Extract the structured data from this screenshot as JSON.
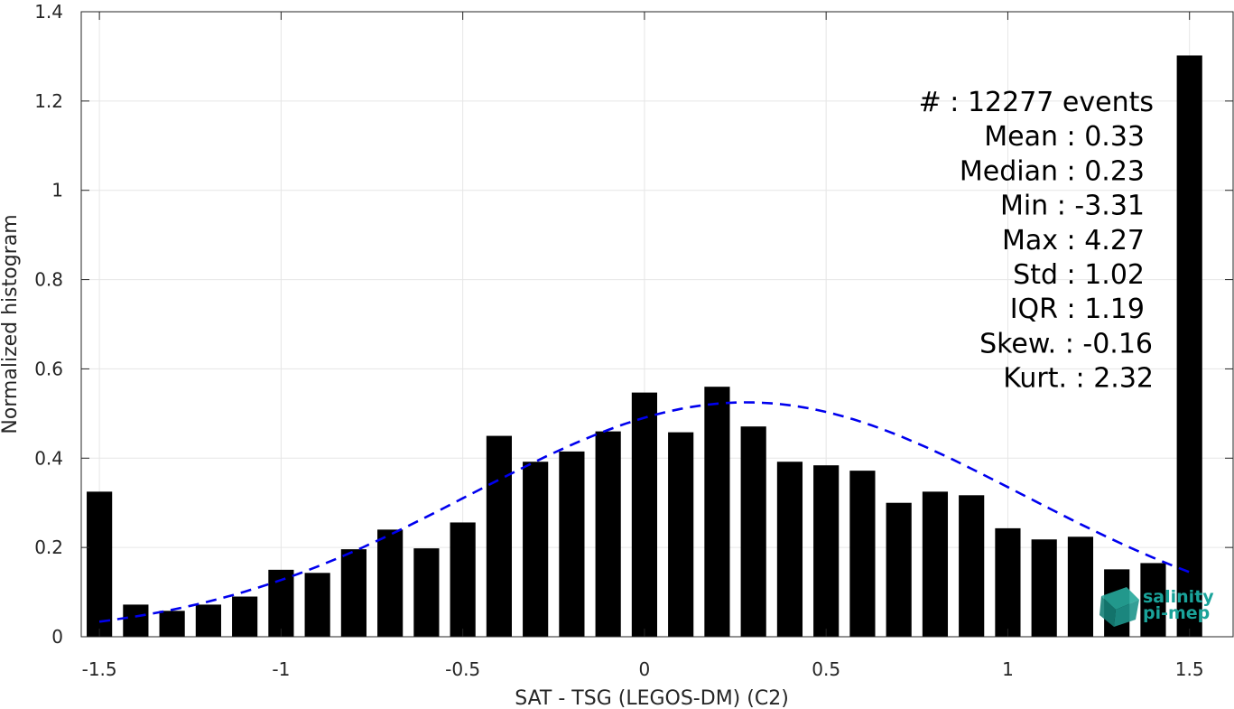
{
  "chart_data": {
    "type": "bar",
    "xlabel": "SAT - TSG (LEGOS-DM) (C2)",
    "ylabel": "Normalized histogram",
    "xlim": [
      -1.55,
      1.62
    ],
    "ylim": [
      0,
      1.4
    ],
    "xticks": [
      -1.5,
      -1,
      -0.5,
      0,
      0.5,
      1,
      1.5
    ],
    "xtick_labels": [
      "-1.5",
      "-1",
      "-0.5",
      "0",
      "0.5",
      "1",
      "1.5"
    ],
    "yticks": [
      0,
      0.2,
      0.4,
      0.6,
      0.8,
      1,
      1.2,
      1.4
    ],
    "ytick_labels": [
      "0",
      "0.2",
      "0.4",
      "0.6",
      "0.8",
      "1",
      "1.2",
      "1.4"
    ],
    "grid": true,
    "bar_color": "#000000",
    "bars": {
      "x": [
        -1.5,
        -1.4,
        -1.3,
        -1.2,
        -1.1,
        -1.0,
        -0.9,
        -0.8,
        -0.7,
        -0.6,
        -0.5,
        -0.4,
        -0.3,
        -0.2,
        -0.1,
        0.0,
        0.1,
        0.2,
        0.3,
        0.4,
        0.5,
        0.6,
        0.7,
        0.8,
        0.9,
        1.0,
        1.1,
        1.2,
        1.3,
        1.4,
        1.5
      ],
      "values": [
        0.325,
        0.072,
        0.058,
        0.072,
        0.09,
        0.15,
        0.143,
        0.196,
        0.24,
        0.198,
        0.256,
        0.45,
        0.392,
        0.415,
        0.46,
        0.547,
        0.458,
        0.56,
        0.471,
        0.392,
        0.384,
        0.372,
        0.3,
        0.325,
        0.317,
        0.243,
        0.218,
        0.224,
        0.151,
        0.165,
        1.302
      ]
    },
    "fit_curve": {
      "type": "normal",
      "mean": 0.28,
      "std": 0.76,
      "peak": 0.525,
      "x_range": [
        -1.5,
        1.5
      ],
      "color": "#0000ee",
      "style": "dashed"
    },
    "stats": [
      "#  : 12277 events",
      "Mean : 0.33",
      "Median : 0.23",
      "Min : -3.31",
      "Max : 4.27",
      "Std : 1.02",
      "IQR : 1.19",
      "Skew. : -0.16",
      "Kurt. : 2.32"
    ],
    "logo": {
      "line1": "salinity",
      "line2": "pi-mep",
      "color": "#1aa39a"
    }
  }
}
